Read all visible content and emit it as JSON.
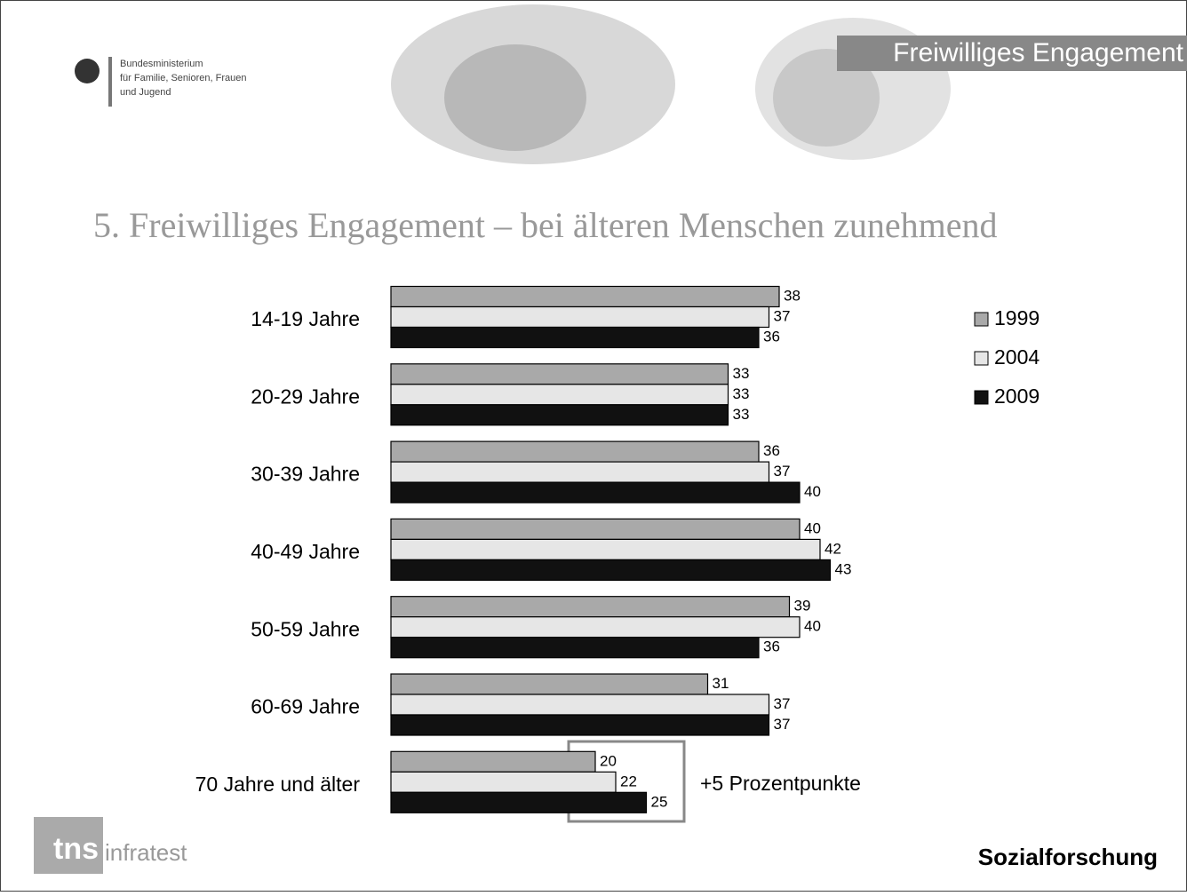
{
  "header": {
    "ministry": [
      "Bundesministerium",
      "für Familie, Senioren, Frauen",
      "und Jugend"
    ],
    "banner": "Freiwilliges Engagement"
  },
  "chart_data": {
    "type": "bar",
    "orientation": "horizontal",
    "title": "5. Freiwilliges Engagement – bei älteren Menschen zunehmend",
    "categories": [
      "14-19 Jahre",
      "20-29 Jahre",
      "30-39 Jahre",
      "40-49 Jahre",
      "50-59 Jahre",
      "60-69 Jahre",
      "70 Jahre und älter"
    ],
    "series": [
      {
        "name": "1999",
        "color": "#a9a9a9",
        "values": [
          38,
          33,
          36,
          40,
          39,
          31,
          20
        ]
      },
      {
        "name": "2004",
        "color": "#e6e6e6",
        "values": [
          37,
          33,
          37,
          42,
          40,
          37,
          22
        ]
      },
      {
        "name": "2009",
        "color": "#111111",
        "values": [
          36,
          33,
          40,
          43,
          36,
          37,
          25
        ]
      }
    ],
    "annotation": "+5 Prozentpunkte",
    "legend": "right"
  },
  "footer": {
    "logo": "tns",
    "logo_sub": "infratest",
    "label": "Sozialforschung"
  }
}
